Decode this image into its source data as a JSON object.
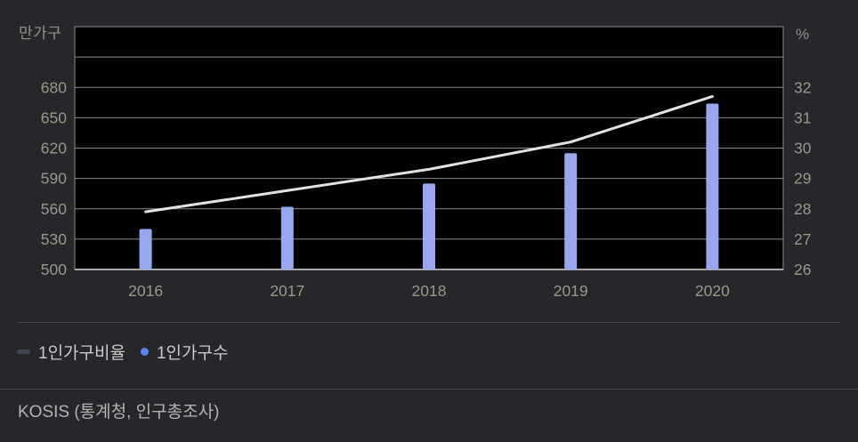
{
  "colors": {
    "background": "#26272a",
    "plot_background": "#000000",
    "grid": "#8c8c8c",
    "axis_border": "#a8a8a8",
    "bar": "#97a8ef",
    "line": "#e2e2e2",
    "tick_text": "#9c968b",
    "unit_text": "#95908a",
    "legend_text": "#c9c9c9",
    "legend_line_swatch": "#3f4450",
    "legend_dot": "#6083f0",
    "source_text": "#b3b3b3",
    "divider": "#4b4b4b"
  },
  "axes": {
    "left_unit": "만가구",
    "right_unit": "%",
    "left_ticks": [
      500,
      530,
      560,
      590,
      620,
      650,
      680
    ],
    "right_ticks": [
      26,
      27,
      28,
      29,
      30,
      31,
      32
    ],
    "grid_step_left": 30
  },
  "chart_data": {
    "type": "combo",
    "categories": [
      "2016",
      "2017",
      "2018",
      "2019",
      "2020"
    ],
    "series": [
      {
        "name": "1인가구비율",
        "type": "line",
        "axis": "right",
        "unit": "%",
        "values": [
          27.9,
          28.6,
          29.3,
          30.2,
          31.7
        ]
      },
      {
        "name": "1인가구수",
        "type": "bar",
        "axis": "left",
        "unit": "만가구",
        "values": [
          540,
          562,
          585,
          615,
          664
        ]
      }
    ],
    "title": "",
    "xlabel": "",
    "ylabel_left": "만가구",
    "ylabel_right": "%",
    "ylim_left": [
      500,
      740
    ],
    "ylim_right": [
      26,
      34
    ],
    "grid": true,
    "legend_position": "bottom-left"
  },
  "legend": {
    "items": [
      {
        "label": "1인가구비율",
        "marker": "dash"
      },
      {
        "label": "1인가구수",
        "marker": "dot"
      }
    ]
  },
  "source": {
    "text": "KOSIS (통계청, 인구총조사)"
  }
}
